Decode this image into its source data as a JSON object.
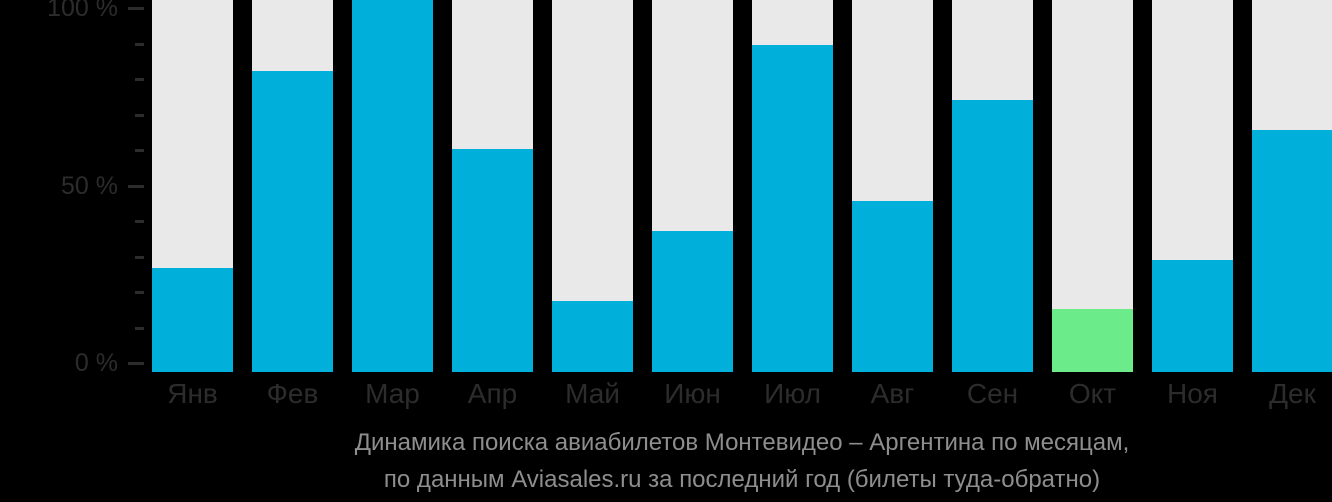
{
  "chart_data": {
    "type": "bar",
    "title": "Динамика поиска авиабилетов Монтевидео – Аргентина по месяцам, по данным Aviasales.ru за последний год (билеты туда-обратно)",
    "caption_lines": [
      "Динамика поиска авиабилетов Монтевидео – Аргентина по месяцам,",
      "по данным Aviasales.ru за последний год (билеты туда-обратно)"
    ],
    "categories": [
      "Янв",
      "Фев",
      "Мар",
      "Апр",
      "Май",
      "Июн",
      "Июл",
      "Авг",
      "Сен",
      "Окт",
      "Ноя",
      "Дек"
    ],
    "values": [
      28,
      81,
      100,
      60,
      19,
      38,
      88,
      46,
      73,
      17,
      30,
      65
    ],
    "unit": "%",
    "highlight": {
      "category": "Окт",
      "index": 9
    },
    "xlabel": "",
    "ylabel": "",
    "ylim": [
      0,
      100
    ],
    "grid": false,
    "legend": "none",
    "y_axis": {
      "major_ticks": [
        {
          "value": 100,
          "label": "100 %"
        },
        {
          "value": 50,
          "label": "50 %"
        },
        {
          "value": 0,
          "label": "0 %"
        }
      ],
      "minor_tick_values": [
        90,
        80,
        70,
        60,
        40,
        30,
        20,
        10
      ]
    }
  },
  "colors": {
    "background": "#000000",
    "bar_fill": "#00B0DB",
    "bar_highlight": "#6CEB8B",
    "bar_track": "#E9E9E9",
    "axis_text": "#2C2C2C",
    "tick": "#2C2C2C",
    "month_text": "#2C2C2C",
    "caption_text": "#8E8E8E"
  }
}
